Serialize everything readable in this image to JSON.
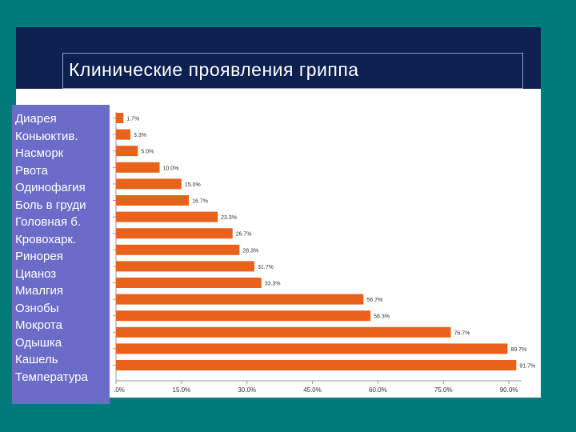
{
  "slide": {
    "title": "Клинические проявления гриппа",
    "colors": {
      "background": "#007a7a",
      "header": "#0d2150",
      "label_panel": "#6a6cc8",
      "bar": "#e8621c"
    }
  },
  "chart_data": {
    "type": "bar",
    "orientation": "horizontal",
    "title": "Клинические проявления гриппа",
    "categories": [
      "Диарея",
      "Коньюктив.",
      "Насморк",
      "Рвота",
      "Одинофагия",
      "Боль в груди",
      "Головная б.",
      "Кровохарк.",
      "Ринорея",
      "Цианоз",
      "Миалгия",
      "Ознобы",
      "Мокрота",
      "Одышка",
      "Кашель",
      "Температура"
    ],
    "values": [
      1.7,
      3.3,
      5.0,
      10.0,
      15.0,
      16.7,
      23.3,
      26.7,
      28.3,
      31.7,
      33.3,
      56.7,
      58.3,
      76.7,
      89.7,
      91.7
    ],
    "data_labels": [
      "1.7%",
      "3.3%",
      "5.0%",
      "10.0%",
      "15.0%",
      "16.7%",
      "23.3%",
      "26.7%",
      "28.3%",
      "31.7%",
      "33.3%",
      "56.7%",
      "58.3%",
      "76.7%",
      "89.7%",
      "91.7%"
    ],
    "xticks": [
      0,
      15,
      30,
      45,
      60,
      75,
      90
    ],
    "xtick_labels": [
      ".0%",
      "15.0%",
      "30.0%",
      "45.0%",
      "60.0%",
      "75.0%",
      "90.0%"
    ],
    "xlim": [
      0,
      92
    ],
    "grid": false,
    "xlabel": "",
    "ylabel": ""
  }
}
